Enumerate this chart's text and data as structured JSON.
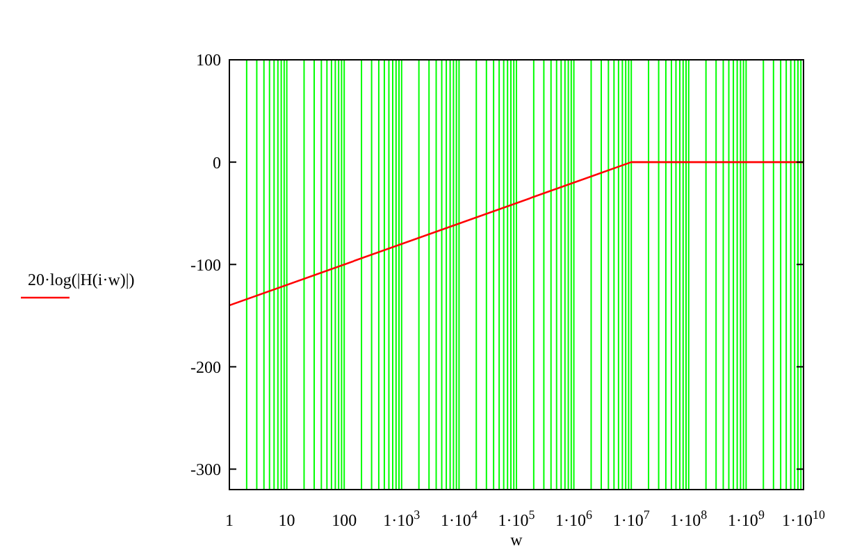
{
  "chart_data": {
    "type": "line",
    "xlabel": "w",
    "log": "x",
    "grid": "x",
    "legend": "left",
    "line_style": "solid",
    "xlim": [
      1,
      10000000000
    ],
    "ylim": [
      -320,
      100
    ],
    "xticks": [
      1,
      10,
      100,
      {
        "value": 1000,
        "label": "1·10$^{3}$"
      },
      {
        "value": 10000,
        "label": "1·10$^{4}$"
      },
      {
        "value": 100000,
        "label": "1·10$^{5}$"
      },
      {
        "value": 1000000,
        "label": "1·10$^{6}$"
      },
      {
        "value": 10000000,
        "label": "1·10$^{7}$"
      },
      {
        "value": 100000000,
        "label": "1·10$^{8}$"
      },
      {
        "value": 1000000000,
        "label": "1·10$^{9}$"
      },
      {
        "value": 10000000000,
        "label": "1·10$^{10}$"
      }
    ],
    "yticks": [
      100,
      0,
      -100,
      -200,
      -300
    ],
    "series": [
      {
        "name": "20·log(|H(i·w)|)",
        "color": "#ff0000",
        "x": [
          1,
          10000000,
          10000000000
        ],
        "values": [
          -140,
          0,
          0
        ]
      }
    ]
  }
}
